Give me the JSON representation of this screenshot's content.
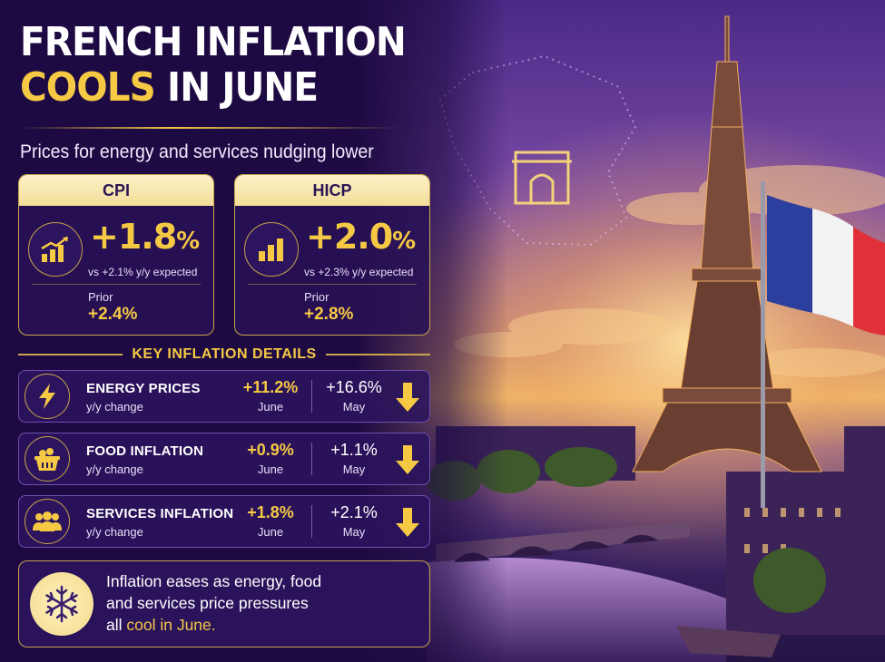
{
  "headline": {
    "line1": "FRENCH INFLATION",
    "line2_highlight": "COOLS",
    "line2_rest": " IN JUNE"
  },
  "subtitle": "Prices for energy and services nudging lower",
  "cards": [
    {
      "label": "CPI",
      "value": "+1.8",
      "unit": "%",
      "expected": "vs +2.1% y/y expected",
      "prior_label": "Prior",
      "prior_value": "+2.4%",
      "icon": "rising-bar-chart-icon"
    },
    {
      "label": "HICP",
      "value": "+2.0",
      "unit": "%",
      "expected": "vs +2.3% y/y expected",
      "prior_label": "Prior",
      "prior_value": "+2.8%",
      "icon": "bar-chart-icon"
    }
  ],
  "details_header": "KEY INFLATION DETAILS",
  "details": [
    {
      "name": "ENERGY PRICES",
      "sub": "y/y change",
      "june_value": "+11.2%",
      "june_label": "June",
      "may_value": "+16.6%",
      "may_label": "May",
      "trend": "down",
      "icon": "lightning-icon"
    },
    {
      "name": "FOOD INFLATION",
      "sub": "y/y change",
      "june_value": "+0.9%",
      "june_label": "June",
      "may_value": "+1.1%",
      "may_label": "May",
      "trend": "down",
      "icon": "grocery-basket-icon"
    },
    {
      "name": "SERVICES INFLATION",
      "sub": "y/y change",
      "june_value": "+1.8%",
      "june_label": "June",
      "may_value": "+2.1%",
      "may_label": "May",
      "trend": "down",
      "icon": "people-group-icon"
    }
  ],
  "summary": {
    "line1": "Inflation eases as energy, food",
    "line2": "and services price pressures",
    "line3_prefix": "all ",
    "line3_highlight": "cool in June.",
    "icon": "snowflake-icon"
  },
  "colors": {
    "accent_gold": "#f6c945",
    "background_purple": "#1d0a42",
    "card_head": "#fdf1c9",
    "flag_blue": "#2c3f9e",
    "flag_white": "#ffffff",
    "flag_red": "#e0303a"
  }
}
